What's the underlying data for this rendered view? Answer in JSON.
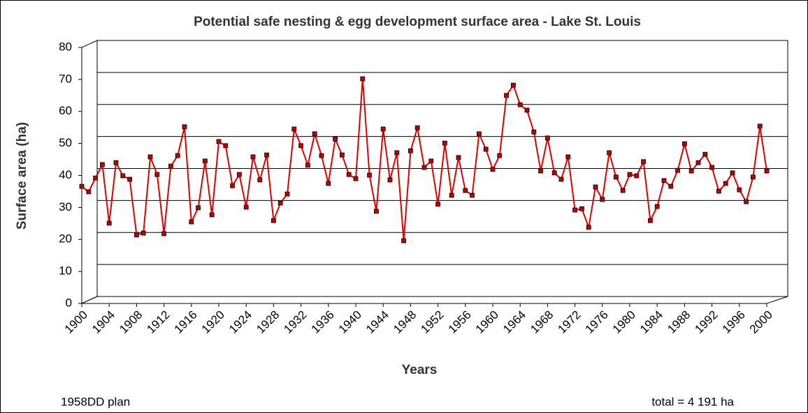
{
  "chart_data": {
    "type": "line",
    "title": "Potential safe nesting & egg development surface area - Lake St. Louis",
    "x_label": "Years",
    "y_label": "Surface area (ha)",
    "annotations": [
      "1958DD plan",
      "total = 4 191 ha"
    ],
    "x": [
      1900,
      1901,
      1902,
      1903,
      1904,
      1905,
      1906,
      1907,
      1908,
      1909,
      1910,
      1911,
      1912,
      1913,
      1914,
      1915,
      1916,
      1917,
      1918,
      1919,
      1920,
      1921,
      1922,
      1923,
      1924,
      1925,
      1926,
      1927,
      1928,
      1929,
      1930,
      1931,
      1932,
      1933,
      1934,
      1935,
      1936,
      1937,
      1938,
      1939,
      1940,
      1941,
      1942,
      1943,
      1944,
      1945,
      1946,
      1947,
      1948,
      1949,
      1950,
      1951,
      1952,
      1953,
      1954,
      1955,
      1956,
      1957,
      1958,
      1959,
      1960,
      1961,
      1962,
      1963,
      1964,
      1965,
      1966,
      1967,
      1968,
      1969,
      1970,
      1971,
      1972,
      1973,
      1974,
      1975,
      1976,
      1977,
      1978,
      1979,
      1980,
      1981,
      1982,
      1983,
      1984,
      1985,
      1986,
      1987,
      1988,
      1989,
      1990,
      1991,
      1992,
      1993,
      1994,
      1995,
      1996,
      1997,
      1998,
      1999,
      2000
    ],
    "series": [
      {
        "name": "Surface area",
        "color": "#e00000",
        "marker_color": "#c00000",
        "values": [
          36.6,
          34.9,
          39.2,
          43.4,
          25.1,
          44.0,
          39.9,
          38.8,
          21.4,
          22.0,
          45.8,
          40.3,
          21.8,
          42.9,
          46.2,
          55.2,
          25.5,
          29.9,
          44.5,
          27.7,
          50.6,
          49.3,
          36.8,
          40.3,
          30.1,
          45.8,
          38.6,
          46.4,
          25.9,
          31.4,
          34.2,
          54.5,
          49.3,
          43.2,
          53.0,
          46.2,
          37.5,
          51.4,
          46.4,
          40.3,
          39.0,
          70.2,
          40.1,
          28.8,
          54.5,
          38.6,
          47.1,
          19.6,
          47.7,
          54.9,
          42.5,
          44.5,
          31.0,
          50.1,
          33.8,
          45.6,
          35.3,
          33.8,
          53.0,
          48.2,
          41.9,
          46.2,
          65.0,
          68.2,
          62.1,
          60.4,
          53.6,
          41.4,
          51.7,
          40.8,
          38.8,
          45.8,
          29.2,
          29.6,
          23.8,
          36.4,
          32.5,
          47.1,
          39.5,
          35.3,
          40.3,
          39.9,
          44.3,
          25.9,
          30.3,
          38.4,
          36.6,
          41.6,
          49.9,
          41.4,
          44.0,
          46.6,
          42.5,
          35.1,
          37.5,
          40.8,
          35.5,
          31.8,
          39.5,
          55.4,
          41.4
        ]
      }
    ],
    "xlim": [
      1900,
      2000
    ],
    "xticks": [
      1900,
      1904,
      1908,
      1912,
      1916,
      1920,
      1924,
      1928,
      1932,
      1936,
      1940,
      1944,
      1948,
      1952,
      1956,
      1960,
      1964,
      1968,
      1972,
      1976,
      1980,
      1984,
      1988,
      1992,
      1996,
      2000
    ],
    "ylim": [
      0,
      80
    ],
    "yticks": [
      0,
      10,
      20,
      30,
      40,
      50,
      60,
      70,
      80
    ],
    "grid": true
  }
}
